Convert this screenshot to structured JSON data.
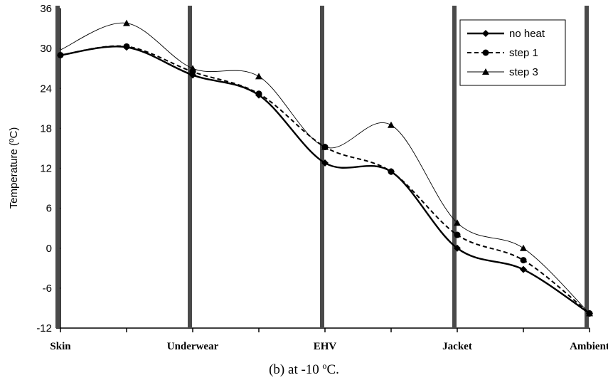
{
  "chart_data": {
    "type": "line",
    "title": "",
    "xlabel": "",
    "ylabel": "Temperature (ºC)",
    "ylim": [
      -12,
      36
    ],
    "y_ticks": [
      -12,
      -6,
      0,
      6,
      12,
      18,
      24,
      30,
      36
    ],
    "x_tick_labels": [
      "Skin",
      "Underwear",
      "EHV",
      "Jacket",
      "Ambient"
    ],
    "x_positions": [
      0,
      1,
      2,
      3,
      4,
      5,
      6,
      7,
      8
    ],
    "layer_boundaries": [
      0,
      2,
      4,
      6,
      8
    ],
    "legend_position": "top-right",
    "series": [
      {
        "name": "no heat",
        "style": "solid-thick",
        "marker": "diamond",
        "values": [
          29.0,
          30.2,
          26.0,
          23.0,
          12.8,
          11.5,
          0.0,
          -3.2,
          -9.8
        ]
      },
      {
        "name": "step 1",
        "style": "dashed",
        "marker": "circle",
        "values": [
          29.0,
          30.3,
          26.5,
          23.2,
          15.2,
          11.5,
          2.0,
          -1.8,
          -9.8
        ]
      },
      {
        "name": "step 3",
        "style": "solid-thin",
        "marker": "triangle",
        "values": [
          29.8,
          33.8,
          27.0,
          25.8,
          15.2,
          18.5,
          3.8,
          0.0,
          -9.8
        ]
      }
    ]
  },
  "caption": "(b) at -10 ºC."
}
